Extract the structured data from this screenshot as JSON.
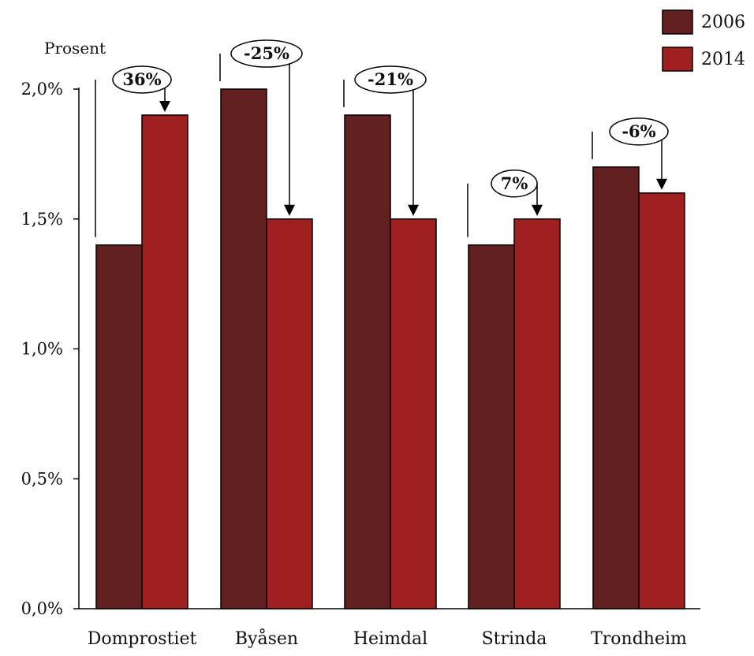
{
  "chart_data": {
    "type": "bar",
    "ylabel": "Prosent",
    "xlabel": "",
    "ylim": [
      0,
      2.0
    ],
    "yticks": [
      {
        "value": 0.0,
        "label": "0,0%"
      },
      {
        "value": 0.5,
        "label": "0,5%"
      },
      {
        "value": 1.0,
        "label": "1,0%"
      },
      {
        "value": 1.5,
        "label": "1,5%"
      },
      {
        "value": 2.0,
        "label": "2,0%"
      }
    ],
    "categories": [
      "Domprostiet",
      "Byåsen",
      "Heimdal",
      "Strinda",
      "Trondheim"
    ],
    "series": [
      {
        "name": "2006",
        "color": "#622020",
        "values": [
          1.4,
          2.0,
          1.9,
          1.4,
          1.7
        ]
      },
      {
        "name": "2014",
        "color": "#A01F20",
        "values": [
          1.9,
          1.5,
          1.5,
          1.5,
          1.6
        ]
      }
    ],
    "change_labels": [
      "36%",
      "-25%",
      "-21%",
      "7%",
      "-6%"
    ],
    "legend_position": "top-right",
    "grid": false
  }
}
